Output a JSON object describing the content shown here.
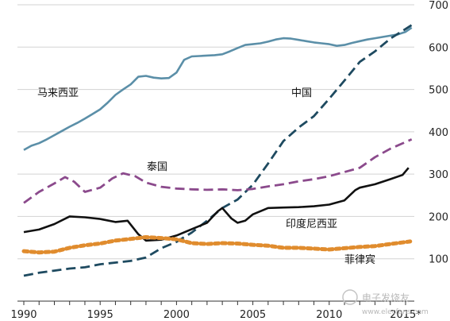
{
  "chart_data": {
    "type": "line",
    "xlim": [
      1990,
      2016
    ],
    "ylim": [
      0,
      700
    ],
    "grid": true,
    "y_ticks": [
      100,
      200,
      300,
      400,
      500,
      600,
      700
    ],
    "x_ticks": [
      "1990",
      "1995",
      "2000",
      "2005",
      "2010",
      "2015*"
    ],
    "series": [
      {
        "name": "马来西亚",
        "color": "#5b8fa8",
        "style": "solid",
        "points": [
          [
            1990,
            357
          ],
          [
            1990.5,
            367
          ],
          [
            1991,
            373
          ],
          [
            1991.5,
            382
          ],
          [
            1992,
            392
          ],
          [
            1992.5,
            402
          ],
          [
            1993,
            412
          ],
          [
            1993.5,
            421
          ],
          [
            1994,
            431
          ],
          [
            1994.5,
            442
          ],
          [
            1995,
            453
          ],
          [
            1995.5,
            469
          ],
          [
            1996,
            487
          ],
          [
            1996.5,
            500
          ],
          [
            1997,
            512
          ],
          [
            1997.5,
            530
          ],
          [
            1998,
            532
          ],
          [
            1998.5,
            528
          ],
          [
            1999,
            526
          ],
          [
            1999.5,
            527
          ],
          [
            2000,
            540
          ],
          [
            2000.5,
            570
          ],
          [
            2001,
            578
          ],
          [
            2001.5,
            579
          ],
          [
            2002,
            580
          ],
          [
            2002.5,
            581
          ],
          [
            2003,
            583
          ],
          [
            2003.5,
            590
          ],
          [
            2004,
            598
          ],
          [
            2004.5,
            605
          ],
          [
            2005,
            607
          ],
          [
            2005.5,
            609
          ],
          [
            2006,
            613
          ],
          [
            2006.5,
            618
          ],
          [
            2007,
            621
          ],
          [
            2007.5,
            620
          ],
          [
            2008,
            617
          ],
          [
            2008.5,
            614
          ],
          [
            2009,
            611
          ],
          [
            2009.5,
            609
          ],
          [
            2010,
            607
          ],
          [
            2010.5,
            603
          ],
          [
            2011,
            605
          ],
          [
            2011.5,
            610
          ],
          [
            2012,
            614
          ],
          [
            2012.5,
            618
          ],
          [
            2013,
            621
          ],
          [
            2013.5,
            624
          ],
          [
            2014,
            627
          ],
          [
            2014.5,
            630
          ],
          [
            2015,
            636
          ],
          [
            2015.4,
            646
          ]
        ]
      },
      {
        "name": "中国",
        "color": "#1e4a60",
        "style": "dashed",
        "points": [
          [
            1990,
            60
          ],
          [
            1991,
            67
          ],
          [
            1992,
            72
          ],
          [
            1993,
            77
          ],
          [
            1994,
            80
          ],
          [
            1995,
            87
          ],
          [
            1996,
            91
          ],
          [
            1997,
            95
          ],
          [
            1998,
            103
          ],
          [
            1999,
            125
          ],
          [
            2000,
            140
          ],
          [
            2001,
            162
          ],
          [
            2002,
            190
          ],
          [
            2003,
            220
          ],
          [
            2004,
            240
          ],
          [
            2005,
            275
          ],
          [
            2006,
            325
          ],
          [
            2007,
            378
          ],
          [
            2008,
            410
          ],
          [
            2009,
            437
          ],
          [
            2010,
            478
          ],
          [
            2011,
            521
          ],
          [
            2012,
            565
          ],
          [
            2013,
            590
          ],
          [
            2014,
            620
          ],
          [
            2015.4,
            652
          ]
        ]
      },
      {
        "name": "泰国",
        "color": "#8b4a8c",
        "style": "dashed",
        "points": [
          [
            1990,
            232
          ],
          [
            1991,
            258
          ],
          [
            1992,
            278
          ],
          [
            1992.7,
            293
          ],
          [
            1993.3,
            282
          ],
          [
            1994,
            258
          ],
          [
            1995,
            268
          ],
          [
            1995.8,
            290
          ],
          [
            1996.5,
            302
          ],
          [
            1997.3,
            295
          ],
          [
            1998,
            280
          ],
          [
            1999,
            270
          ],
          [
            2000,
            266
          ],
          [
            2001,
            264
          ],
          [
            2002,
            263
          ],
          [
            2003,
            264
          ],
          [
            2004,
            262
          ],
          [
            2005,
            265
          ],
          [
            2006,
            271
          ],
          [
            2007,
            276
          ],
          [
            2008,
            283
          ],
          [
            2009,
            288
          ],
          [
            2010,
            295
          ],
          [
            2011,
            305
          ],
          [
            2012,
            315
          ],
          [
            2013,
            340
          ],
          [
            2014,
            360
          ],
          [
            2015.4,
            382
          ]
        ]
      },
      {
        "name": "印度尼西亚",
        "color": "#111111",
        "style": "solid",
        "points": [
          [
            1990,
            163
          ],
          [
            1991,
            169
          ],
          [
            1992,
            182
          ],
          [
            1993,
            200
          ],
          [
            1994,
            198
          ],
          [
            1995,
            194
          ],
          [
            1996,
            187
          ],
          [
            1996.8,
            190
          ],
          [
            1997.5,
            158
          ],
          [
            1998,
            143
          ],
          [
            1999,
            145
          ],
          [
            2000,
            155
          ],
          [
            2001,
            170
          ],
          [
            2002,
            185
          ],
          [
            2002.7,
            212
          ],
          [
            2003,
            220
          ],
          [
            2003.6,
            195
          ],
          [
            2004,
            185
          ],
          [
            2004.5,
            190
          ],
          [
            2005,
            205
          ],
          [
            2006,
            220
          ],
          [
            2007,
            221
          ],
          [
            2008,
            222
          ],
          [
            2009,
            224
          ],
          [
            2010,
            228
          ],
          [
            2011,
            238
          ],
          [
            2011.7,
            262
          ],
          [
            2012,
            268
          ],
          [
            2013,
            276
          ],
          [
            2014,
            288
          ],
          [
            2014.8,
            298
          ],
          [
            2015.2,
            315
          ]
        ]
      },
      {
        "name": "菲律宾",
        "color": "#e08c2e",
        "style": "dotted",
        "points": [
          [
            1990,
            118
          ],
          [
            1991,
            115
          ],
          [
            1992,
            117
          ],
          [
            1993,
            126
          ],
          [
            1994,
            132
          ],
          [
            1995,
            136
          ],
          [
            1996,
            143
          ],
          [
            1997,
            147
          ],
          [
            1998,
            151
          ],
          [
            1999,
            149
          ],
          [
            2000,
            146
          ],
          [
            2001,
            137
          ],
          [
            2002,
            135
          ],
          [
            2003,
            137
          ],
          [
            2004,
            136
          ],
          [
            2005,
            133
          ],
          [
            2006,
            131
          ],
          [
            2007,
            126
          ],
          [
            2008,
            126
          ],
          [
            2009,
            124
          ],
          [
            2010,
            122
          ],
          [
            2011,
            125
          ],
          [
            2012,
            128
          ],
          [
            2013,
            130
          ],
          [
            2014,
            135
          ],
          [
            2015.3,
            141
          ]
        ]
      }
    ]
  },
  "watermark": "电子发烧友",
  "watermark_url": "www.elecfans.com"
}
